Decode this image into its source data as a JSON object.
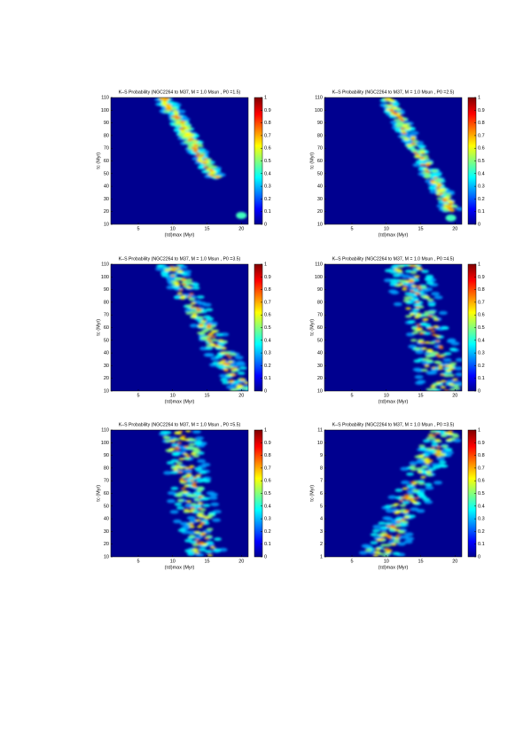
{
  "chart_data": [
    {
      "type": "contour",
      "title": "K–S Probability (NGC2264 to M37, M = 1.0 Msun , P0 =1.5)",
      "xlabel": "(τd)max (Myr)",
      "ylabel": "τc (Myr)",
      "xlim": [
        1,
        21
      ],
      "ylim": [
        10,
        110
      ],
      "xticks": [
        5,
        10,
        15,
        20
      ],
      "yticks": [
        10,
        20,
        30,
        40,
        50,
        60,
        70,
        80,
        90,
        100,
        110
      ],
      "clim": [
        0,
        1
      ],
      "cticks": [
        0,
        0.1,
        0.2,
        0.3,
        0.4,
        0.5,
        0.6,
        0.7,
        0.8,
        0.9,
        1
      ]
    },
    {
      "type": "contour",
      "title": "K–S Probability (NGC2264 to M37, M = 1.0 Msun , P0 =2.5)",
      "xlabel": "(τd)max (Myr)",
      "ylabel": "τc (Myr)",
      "xlim": [
        1,
        21
      ],
      "ylim": [
        10,
        110
      ],
      "xticks": [
        5,
        10,
        15,
        20
      ],
      "yticks": [
        10,
        20,
        30,
        40,
        50,
        60,
        70,
        80,
        90,
        100,
        110
      ],
      "clim": [
        0,
        1
      ],
      "cticks": [
        0,
        0.1,
        0.2,
        0.3,
        0.4,
        0.5,
        0.6,
        0.7,
        0.8,
        0.9,
        1
      ]
    },
    {
      "type": "contour",
      "title": "K–S Probability (NGC2264 to M37, M = 1.0 Msun , P0 =3.5)",
      "xlabel": "(τd)max (Myr)",
      "ylabel": "τc (Myr)",
      "xlim": [
        1,
        21
      ],
      "ylim": [
        10,
        110
      ],
      "xticks": [
        5,
        10,
        15,
        20
      ],
      "yticks": [
        10,
        20,
        30,
        40,
        50,
        60,
        70,
        80,
        90,
        100,
        110
      ],
      "clim": [
        0,
        1
      ],
      "cticks": [
        0,
        0.1,
        0.2,
        0.3,
        0.4,
        0.5,
        0.6,
        0.7,
        0.8,
        0.9,
        1
      ]
    },
    {
      "type": "contour",
      "title": "K–S Probability (NGC2264 to M37, M = 1.0 Msun , P0 =4.5)",
      "xlabel": "(τd)max (Myr)",
      "ylabel": "τc (Myr)",
      "xlim": [
        1,
        21
      ],
      "ylim": [
        10,
        110
      ],
      "xticks": [
        5,
        10,
        15,
        20
      ],
      "yticks": [
        10,
        20,
        30,
        40,
        50,
        60,
        70,
        80,
        90,
        100,
        110
      ],
      "clim": [
        0,
        1
      ],
      "cticks": [
        0,
        0.1,
        0.2,
        0.3,
        0.4,
        0.5,
        0.6,
        0.7,
        0.8,
        0.9,
        1
      ]
    },
    {
      "type": "contour",
      "title": "K–S Probability (NGC2264 to M37, M = 1.0 Msun , P0 =5.5)",
      "xlabel": "(τd)max (Myr)",
      "ylabel": "τc (Myr)",
      "xlim": [
        1,
        21
      ],
      "ylim": [
        10,
        110
      ],
      "xticks": [
        5,
        10,
        15,
        20
      ],
      "yticks": [
        10,
        20,
        30,
        40,
        50,
        60,
        70,
        80,
        90,
        100,
        110
      ],
      "clim": [
        0,
        1
      ],
      "cticks": [
        0,
        0.1,
        0.2,
        0.3,
        0.4,
        0.5,
        0.6,
        0.7,
        0.8,
        0.9,
        1
      ]
    },
    {
      "type": "contour",
      "title": "K–S Probability (NGC2264 to M37, M = 1.0 Msun , P0 =3.5)",
      "xlabel": "(τd)max (Myr)",
      "ylabel": "τc (Myr)",
      "xlim": [
        1,
        21
      ],
      "ylim": [
        1,
        11
      ],
      "xticks": [
        5,
        10,
        15,
        20
      ],
      "yticks": [
        1,
        2,
        3,
        4,
        5,
        6,
        7,
        8,
        9,
        10,
        11
      ],
      "clim": [
        0,
        1
      ],
      "cticks": [
        0,
        0.1,
        0.2,
        0.3,
        0.4,
        0.5,
        0.6,
        0.7,
        0.8,
        0.9,
        1
      ]
    }
  ]
}
